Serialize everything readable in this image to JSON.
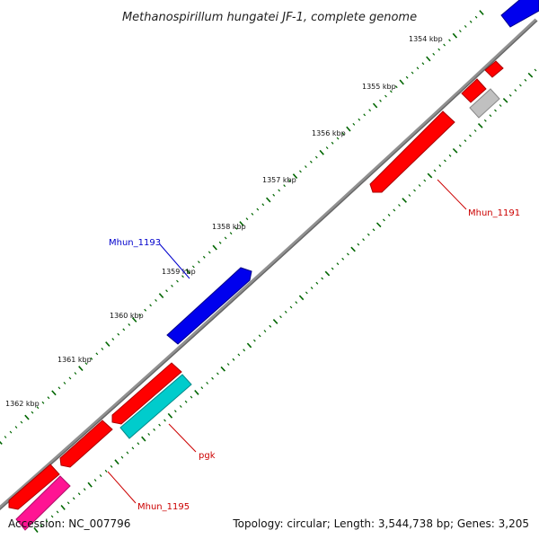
{
  "title": "Methanospirillum hungatei JF-1, complete genome",
  "accession": "Accession: NC_007796",
  "topology": "Topology: circular; Length: 3,544,738 bp; Genes: 3,205",
  "kbp_labels": [
    "1354 kbp",
    "1355 kbp",
    "1356 kbp",
    "1357 kbp",
    "1358 kbp",
    "1359 kbp",
    "1360 kbp",
    "1361 kbp",
    "1362 kbp"
  ],
  "gene_labels": [
    {
      "text": "Mhun_1191",
      "color": "#cc0000"
    },
    {
      "text": "Mhun_1193",
      "color": "#0000cc"
    },
    {
      "text": "pgk",
      "color": "#cc0000"
    },
    {
      "text": "Mhun_1195",
      "color": "#cc0000"
    }
  ],
  "colors": {
    "backbone": "#808080",
    "tick": "#006600",
    "cds_red": "#ff0000",
    "cds_blue": "#0000ee",
    "cds_cyan": "#00cccc",
    "cds_gray": "#c0c0c0",
    "cds_pink": "#ff1493"
  }
}
